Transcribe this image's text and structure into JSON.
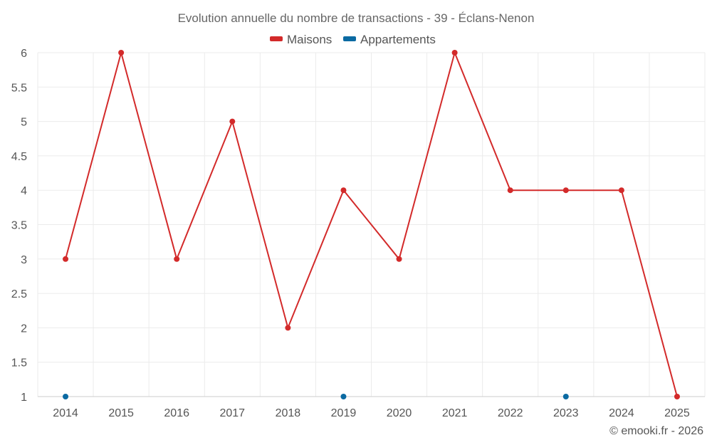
{
  "chart_data": {
    "type": "line",
    "title": "Evolution annuelle du nombre de transactions - 39 - Éclans-Nenon",
    "xlabel": "",
    "ylabel": "",
    "categories": [
      "2014",
      "2015",
      "2016",
      "2017",
      "2018",
      "2019",
      "2020",
      "2021",
      "2022",
      "2023",
      "2024",
      "2025"
    ],
    "ylim": [
      1,
      6
    ],
    "yticks": [
      "1",
      "1.5",
      "2",
      "2.5",
      "3",
      "3.5",
      "4",
      "4.5",
      "5",
      "5.5",
      "6"
    ],
    "grid": true,
    "legend_position": "top-center",
    "series": [
      {
        "name": "Maisons",
        "color": "#d32a2a",
        "line": true,
        "values": [
          3,
          6,
          3,
          5,
          2,
          4,
          3,
          6,
          4,
          4,
          4,
          1
        ]
      },
      {
        "name": "Appartements",
        "color": "#0b6aa2",
        "line": false,
        "values": [
          1,
          null,
          null,
          null,
          null,
          1,
          null,
          null,
          null,
          1,
          null,
          null
        ]
      }
    ]
  },
  "credit": "© emooki.fr - 2026"
}
